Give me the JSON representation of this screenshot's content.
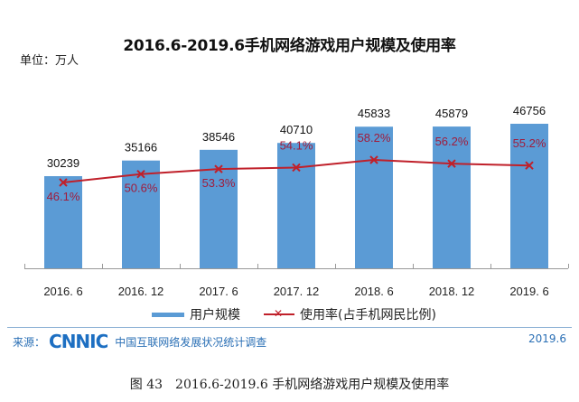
{
  "title": "2016.6-2019.6手机网络游戏用户规模及使用率",
  "unit": "单位：万人",
  "chart_data": {
    "type": "bar",
    "title": "2016.6-2019.6手机网络游戏用户规模及使用率",
    "xlabel": "",
    "ylabel": "单位：万人",
    "categories": [
      "2016.6",
      "2016.12",
      "2017.6",
      "2017.12",
      "2018.6",
      "2018.12",
      "2019.6"
    ],
    "series": [
      {
        "name": "用户规模",
        "type": "bar",
        "color": "#5b9bd5",
        "values": [
          30239,
          35166,
          38546,
          40710,
          45833,
          45879,
          46756
        ]
      },
      {
        "name": "使用率(占手机网民比例)",
        "type": "line",
        "color": "#c0202a",
        "unit": "%",
        "values": [
          46.1,
          50.6,
          53.3,
          54.1,
          58.2,
          56.2,
          55.2
        ]
      }
    ],
    "grid": false,
    "legend_position": "bottom"
  },
  "legend": {
    "bar": "用户规模",
    "line": "使用率(占手机网民比例)",
    "marker": "✕"
  },
  "footer": {
    "source_label": "来源：",
    "logo": "CNNIC",
    "source_name": "中国互联网络发展状况统计调查",
    "date": "2019.6"
  },
  "caption": "图 43　2016.6-2019.6 手机网络游戏用户规模及使用率"
}
